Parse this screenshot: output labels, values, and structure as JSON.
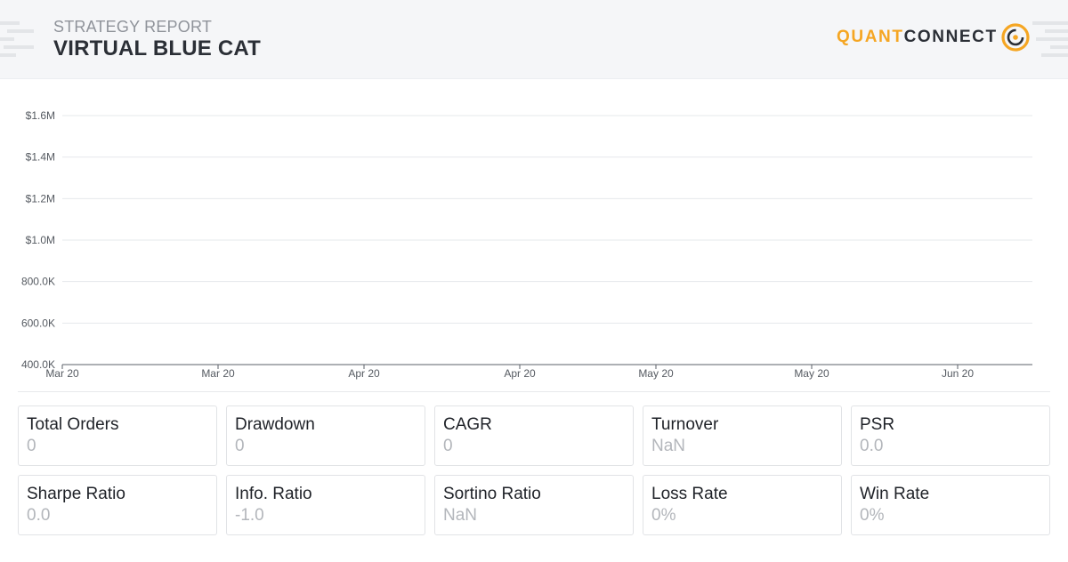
{
  "header": {
    "report_label": "STRATEGY REPORT",
    "report_title": "VIRTUAL BLUE CAT",
    "logo_part1": "QUANT",
    "logo_part2": "CONNECT",
    "logo_icon": "quantconnect-logo-icon"
  },
  "colors": {
    "brand_orange": "#f5a623",
    "dark_text": "#2b2f36",
    "muted_text": "#b3b6bb",
    "grid": "#e6e8eb"
  },
  "chart_data": {
    "type": "line",
    "title": "",
    "xlabel": "",
    "ylabel": "",
    "yticks": [
      "$1.6M",
      "$1.4M",
      "$1.2M",
      "$1.0M",
      "800.0K",
      "600.0K",
      "400.0K"
    ],
    "ytick_values": [
      1600000,
      1400000,
      1200000,
      1000000,
      800000,
      600000,
      400000
    ],
    "ylim": [
      400000,
      1600000
    ],
    "xticks": [
      "Mar 20",
      "Mar 20",
      "Apr 20",
      "Apr 20",
      "May 20",
      "May 20",
      "Jun 20"
    ],
    "grid": true,
    "series": []
  },
  "stats": [
    {
      "label": "Total Orders",
      "value": "0"
    },
    {
      "label": "Drawdown",
      "value": "0"
    },
    {
      "label": "CAGR",
      "value": "0"
    },
    {
      "label": "Turnover",
      "value": "NaN"
    },
    {
      "label": "PSR",
      "value": "0.0"
    },
    {
      "label": "Sharpe Ratio",
      "value": "0.0"
    },
    {
      "label": "Info. Ratio",
      "value": "-1.0"
    },
    {
      "label": "Sortino Ratio",
      "value": "NaN"
    },
    {
      "label": "Loss Rate",
      "value": "0%"
    },
    {
      "label": "Win Rate",
      "value": "0%"
    }
  ]
}
